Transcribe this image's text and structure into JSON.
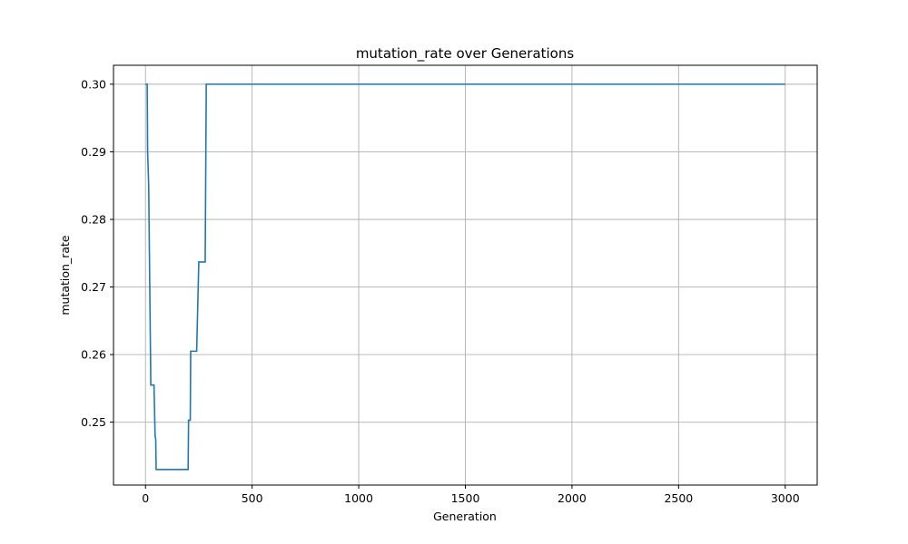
{
  "chart_data": {
    "type": "line",
    "title": "mutation_rate over Generations",
    "xlabel": "Generation",
    "ylabel": "mutation_rate",
    "xlim": [
      -150,
      3150
    ],
    "ylim": [
      0.2407,
      0.3028
    ],
    "xticks": [
      0,
      500,
      1000,
      1500,
      2000,
      2500,
      3000
    ],
    "yticks": [
      0.25,
      0.26,
      0.27,
      0.28,
      0.29,
      0.3
    ],
    "xtick_labels": [
      "0",
      "500",
      "1000",
      "1500",
      "2000",
      "2500",
      "3000"
    ],
    "ytick_labels": [
      "0.25",
      "0.26",
      "0.27",
      "0.28",
      "0.29",
      "0.30"
    ],
    "grid": true,
    "series": [
      {
        "color": "#1f77b4",
        "x": [
          0,
          8,
          10,
          12,
          15,
          25,
          35,
          38,
          40,
          45,
          48,
          50,
          200,
          202,
          210,
          212,
          240,
          250,
          265,
          270,
          280,
          285,
          3000
        ],
        "y": [
          0.3,
          0.3,
          0.29,
          0.288,
          0.285,
          0.2555,
          0.2555,
          0.2555,
          0.2555,
          0.248,
          0.2475,
          0.243,
          0.243,
          0.2503,
          0.2503,
          0.2605,
          0.2605,
          0.2737,
          0.2737,
          0.2737,
          0.2737,
          0.3,
          0.3
        ]
      }
    ]
  }
}
